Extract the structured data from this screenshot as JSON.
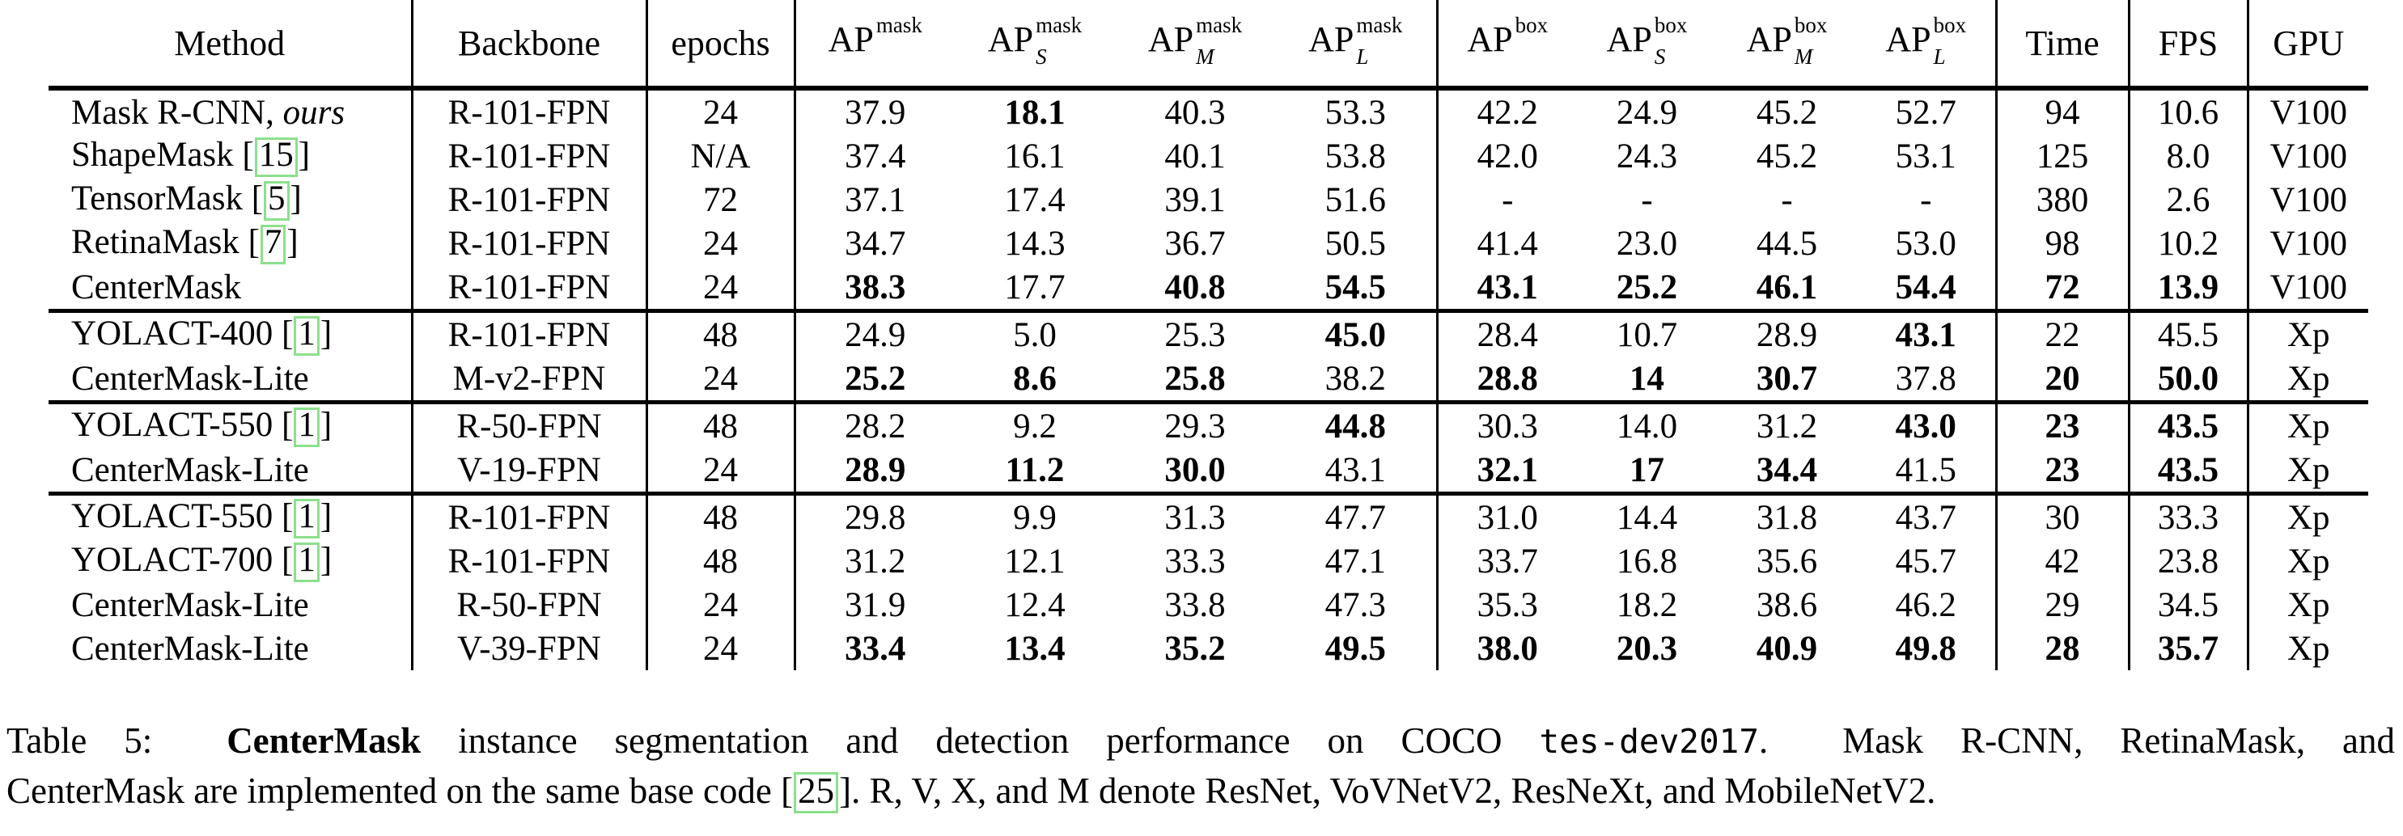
{
  "accent_colors": {
    "citation_box_green": "#8ce08c"
  },
  "table": {
    "headers": [
      {
        "t": "Method"
      },
      {
        "t": "Backbone"
      },
      {
        "t": "epochs"
      },
      {
        "ap": "AP",
        "sup": "mask",
        "sub": ""
      },
      {
        "ap": "AP",
        "sup": "mask",
        "sub": "S"
      },
      {
        "ap": "AP",
        "sup": "mask",
        "sub": "M"
      },
      {
        "ap": "AP",
        "sup": "mask",
        "sub": "L"
      },
      {
        "ap": "AP",
        "sup": "box",
        "sub": ""
      },
      {
        "ap": "AP",
        "sup": "box",
        "sub": "S"
      },
      {
        "ap": "AP",
        "sup": "box",
        "sub": "M"
      },
      {
        "ap": "AP",
        "sup": "box",
        "sub": "L"
      },
      {
        "t": "Time"
      },
      {
        "t": "FPS"
      },
      {
        "t": "GPU"
      }
    ],
    "blocks": [
      [
        {
          "method": {
            "t": "Mask R-CNN,",
            "i": "ours"
          },
          "values": [
            "R-101-FPN",
            "24",
            "37.9",
            "18.1",
            "40.3",
            "53.3",
            "42.2",
            "24.9",
            "45.2",
            "52.7",
            "94",
            "10.6",
            "V100"
          ],
          "bold": [
            3
          ]
        },
        {
          "method": {
            "t": "ShapeMask",
            "c": "15"
          },
          "values": [
            "R-101-FPN",
            "N/A",
            "37.4",
            "16.1",
            "40.1",
            "53.8",
            "42.0",
            "24.3",
            "45.2",
            "53.1",
            "125",
            "8.0",
            "V100"
          ],
          "bold": []
        },
        {
          "method": {
            "t": "TensorMask",
            "c": "5"
          },
          "values": [
            "R-101-FPN",
            "72",
            "37.1",
            "17.4",
            "39.1",
            "51.6",
            "-",
            "-",
            "-",
            "-",
            "380",
            "2.6",
            "V100"
          ],
          "bold": []
        },
        {
          "method": {
            "t": "RetinaMask",
            "c": "7"
          },
          "values": [
            "R-101-FPN",
            "24",
            "34.7",
            "14.3",
            "36.7",
            "50.5",
            "41.4",
            "23.0",
            "44.5",
            "53.0",
            "98",
            "10.2",
            "V100"
          ],
          "bold": []
        },
        {
          "method": {
            "t": "CenterMask"
          },
          "values": [
            "R-101-FPN",
            "24",
            "38.3",
            "17.7",
            "40.8",
            "54.5",
            "43.1",
            "25.2",
            "46.1",
            "54.4",
            "72",
            "13.9",
            "V100"
          ],
          "bold": [
            2,
            4,
            5,
            6,
            7,
            8,
            9,
            10,
            11
          ]
        }
      ],
      [
        {
          "method": {
            "t": "YOLACT-400",
            "c": "1"
          },
          "values": [
            "R-101-FPN",
            "48",
            "24.9",
            "5.0",
            "25.3",
            "45.0",
            "28.4",
            "10.7",
            "28.9",
            "43.1",
            "22",
            "45.5",
            "Xp"
          ],
          "bold": [
            5,
            9
          ]
        },
        {
          "method": {
            "t": "CenterMask-Lite"
          },
          "values": [
            "M-v2-FPN",
            "24",
            "25.2",
            "8.6",
            "25.8",
            "38.2",
            "28.8",
            "14",
            "30.7",
            "37.8",
            "20",
            "50.0",
            "Xp"
          ],
          "bold": [
            2,
            3,
            4,
            6,
            7,
            8,
            10,
            11
          ]
        }
      ],
      [
        {
          "method": {
            "t": "YOLACT-550",
            "c": "1"
          },
          "values": [
            "R-50-FPN",
            "48",
            "28.2",
            "9.2",
            "29.3",
            "44.8",
            "30.3",
            "14.0",
            "31.2",
            "43.0",
            "23",
            "43.5",
            "Xp"
          ],
          "bold": [
            5,
            9,
            10,
            11
          ]
        },
        {
          "method": {
            "t": "CenterMask-Lite"
          },
          "values": [
            "V-19-FPN",
            "24",
            "28.9",
            "11.2",
            "30.0",
            "43.1",
            "32.1",
            "17",
            "34.4",
            "41.5",
            "23",
            "43.5",
            "Xp"
          ],
          "bold": [
            2,
            3,
            4,
            6,
            7,
            8,
            10,
            11
          ]
        }
      ],
      [
        {
          "method": {
            "t": "YOLACT-550",
            "c": "1"
          },
          "values": [
            "R-101-FPN",
            "48",
            "29.8",
            "9.9",
            "31.3",
            "47.7",
            "31.0",
            "14.4",
            "31.8",
            "43.7",
            "30",
            "33.3",
            "Xp"
          ],
          "bold": []
        },
        {
          "method": {
            "t": "YOLACT-700",
            "c": "1"
          },
          "values": [
            "R-101-FPN",
            "48",
            "31.2",
            "12.1",
            "33.3",
            "47.1",
            "33.7",
            "16.8",
            "35.6",
            "45.7",
            "42",
            "23.8",
            "Xp"
          ],
          "bold": []
        },
        {
          "method": {
            "t": "CenterMask-Lite"
          },
          "values": [
            "R-50-FPN",
            "24",
            "31.9",
            "12.4",
            "33.8",
            "47.3",
            "35.3",
            "18.2",
            "38.6",
            "46.2",
            "29",
            "34.5",
            "Xp"
          ],
          "bold": []
        },
        {
          "method": {
            "t": "CenterMask-Lite"
          },
          "values": [
            "V-39-FPN",
            "24",
            "33.4",
            "13.4",
            "35.2",
            "49.5",
            "38.0",
            "20.3",
            "40.9",
            "49.8",
            "28",
            "35.7",
            "Xp"
          ],
          "bold": [
            2,
            3,
            4,
            5,
            6,
            7,
            8,
            9,
            10,
            11
          ]
        }
      ]
    ]
  },
  "caption": {
    "line1": [
      {
        "t": "Table 5:  "
      },
      {
        "t": "CenterMask",
        "b": true
      },
      {
        "t": " instance segmentation and detection performance on COCO "
      },
      {
        "t": "tes-dev2017",
        "mono": true
      },
      {
        "t": ".  Mask R-CNN, RetinaMask, and"
      }
    ],
    "line2": [
      {
        "t": "CenterMask are implemented on the same base code ["
      },
      {
        "t": "25",
        "cite": true
      },
      {
        "t": "]. R, V, X, and M denote ResNet, VoVNetV2, ResNeXt, and MobileNetV2."
      }
    ]
  }
}
